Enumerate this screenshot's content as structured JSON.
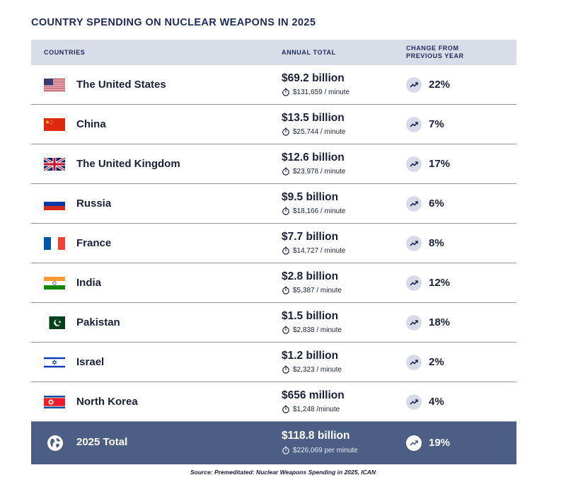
{
  "title": "COUNTRY SPENDING ON NUCLEAR WEAPONS IN 2025",
  "header": {
    "countries": "COUNTRIES",
    "annual_total": "ANNUAL TOTAL",
    "change_line1": "CHANGE FROM",
    "change_line2": "PREVIOUS YEAR"
  },
  "rows": [
    {
      "country": "The United States",
      "flag": "us-flag-icon",
      "annual": "$69.2 billion",
      "per_minute": "$131,659 / minute",
      "change": "22%"
    },
    {
      "country": "China",
      "flag": "china-flag-icon",
      "annual": "$13.5 billion",
      "per_minute": "$25,744 / minute",
      "change": "7%"
    },
    {
      "country": "The United Kingdom",
      "flag": "uk-flag-icon",
      "annual": "$12.6 billion",
      "per_minute": "$23,978 / minute",
      "change": "17%"
    },
    {
      "country": "Russia",
      "flag": "russia-flag-icon",
      "annual": "$9.5 billion",
      "per_minute": "$18,166 / minute",
      "change": "6%"
    },
    {
      "country": "France",
      "flag": "france-flag-icon",
      "annual": "$7.7 billion",
      "per_minute": "$14,727 / minute",
      "change": "8%"
    },
    {
      "country": "India",
      "flag": "india-flag-icon",
      "annual": "$2.8 billion",
      "per_minute": "$5,387 / minute",
      "change": "12%"
    },
    {
      "country": "Pakistan",
      "flag": "pakistan-flag-icon",
      "annual": "$1.5 billion",
      "per_minute": "$2,838 / minute",
      "change": "18%"
    },
    {
      "country": "Israel",
      "flag": "israel-flag-icon",
      "annual": "$1.2 billion",
      "per_minute": "$2,323 / minute",
      "change": "2%"
    },
    {
      "country": "North Korea",
      "flag": "north-korea-flag-icon",
      "annual": "$656 million",
      "per_minute": "$1,248 /minute",
      "change": "4%"
    }
  ],
  "total": {
    "label": "2025 Total",
    "icon": "globe-icon",
    "annual": "$118.8 billion",
    "per_minute": "$226,069 per minute",
    "change": "19%"
  },
  "source": "Source: Premeditated: Nuclear Weapons Spending in 2025, ICAN",
  "colors": {
    "title": "#1e2a5a",
    "header_bg": "#d9dde8",
    "total_bg": "#4d5e85",
    "trend_circle": "#d7dbe7"
  }
}
